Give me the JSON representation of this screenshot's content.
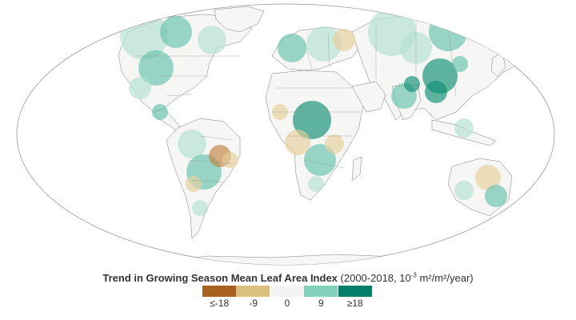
{
  "map": {
    "title": "Trend in Growing Season Mean Leaf Area Index",
    "subtitle_pre": "(2000-2018, 10",
    "subtitle_exp": "-3",
    "subtitle_post": " m²/m²/year)"
  },
  "legend": {
    "items": [
      {
        "label": "≤-18",
        "color": "#a86120"
      },
      {
        "label": "-9",
        "color": "#dcc17e"
      },
      {
        "label": "0",
        "color": "#f4f4f2"
      },
      {
        "label": "9",
        "color": "#85cfbd"
      },
      {
        "label": "≥18",
        "color": "#04806a"
      }
    ]
  },
  "colors": {
    "ocean": "#ffffff",
    "land_base": "#f6f6f4",
    "border": "#7a7a7a",
    "green_light": "#b3e0d4",
    "green_mid": "#66c2ac",
    "green_dark": "#0c8d73",
    "brown_light": "#e6cf9b",
    "brown_dark": "#c08440"
  }
}
